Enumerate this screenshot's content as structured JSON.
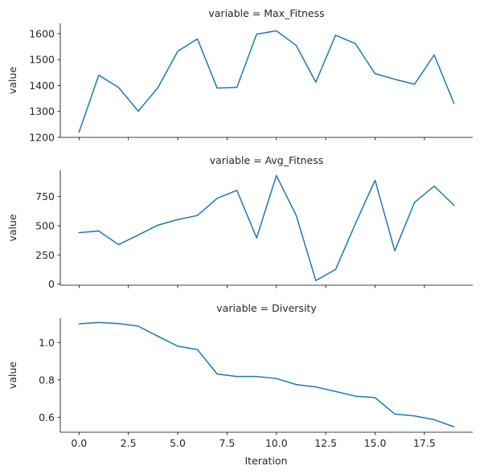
{
  "chart_data": {
    "type": "line",
    "xlabel": "Iteration",
    "ylabel": "value",
    "x": [
      0,
      1,
      2,
      3,
      4,
      5,
      6,
      7,
      8,
      9,
      10,
      11,
      12,
      13,
      14,
      15,
      16,
      17,
      18,
      19
    ],
    "xticks": [
      "0.0",
      "2.5",
      "5.0",
      "7.5",
      "10.0",
      "12.5",
      "15.0",
      "17.5"
    ],
    "xtick_values": [
      0,
      2.5,
      5,
      7.5,
      10,
      12.5,
      15,
      17.5
    ],
    "xlim": [
      -0.95,
      19.95
    ],
    "line_color": "#1f77b4",
    "grid": false,
    "facets": [
      {
        "title": "variable = Max_Fitness",
        "ylim": [
          1200,
          1640
        ],
        "yticks": [
          1200,
          1300,
          1400,
          1500,
          1600
        ],
        "ytick_labels": [
          "1200",
          "1300",
          "1400",
          "1500",
          "1600"
        ],
        "values": [
          1220,
          1440,
          1393,
          1301,
          1392,
          1532,
          1580,
          1390,
          1393,
          1598,
          1611,
          1555,
          1413,
          1594,
          1562,
          1446,
          1424,
          1405,
          1518,
          1331
        ]
      },
      {
        "title": "variable = Avg_Fitness",
        "ylim": [
          -10,
          975
        ],
        "yticks": [
          0,
          250,
          500,
          750
        ],
        "ytick_labels": [
          "0",
          "250",
          "500",
          "750"
        ],
        "values": [
          440,
          455,
          338,
          420,
          505,
          552,
          588,
          735,
          803,
          395,
          930,
          590,
          30,
          125,
          515,
          890,
          285,
          700,
          840,
          675
        ]
      },
      {
        "title": "variable = Diversity",
        "ylim": [
          0.52,
          1.13
        ],
        "yticks": [
          0.6,
          0.8,
          1.0
        ],
        "ytick_labels": [
          "0.6",
          "0.8",
          "1.0"
        ],
        "values": [
          1.1,
          1.107,
          1.101,
          1.087,
          1.033,
          0.98,
          0.962,
          0.831,
          0.818,
          0.818,
          0.807,
          0.775,
          0.762,
          0.738,
          0.713,
          0.705,
          0.617,
          0.607,
          0.587,
          0.549
        ]
      }
    ]
  }
}
